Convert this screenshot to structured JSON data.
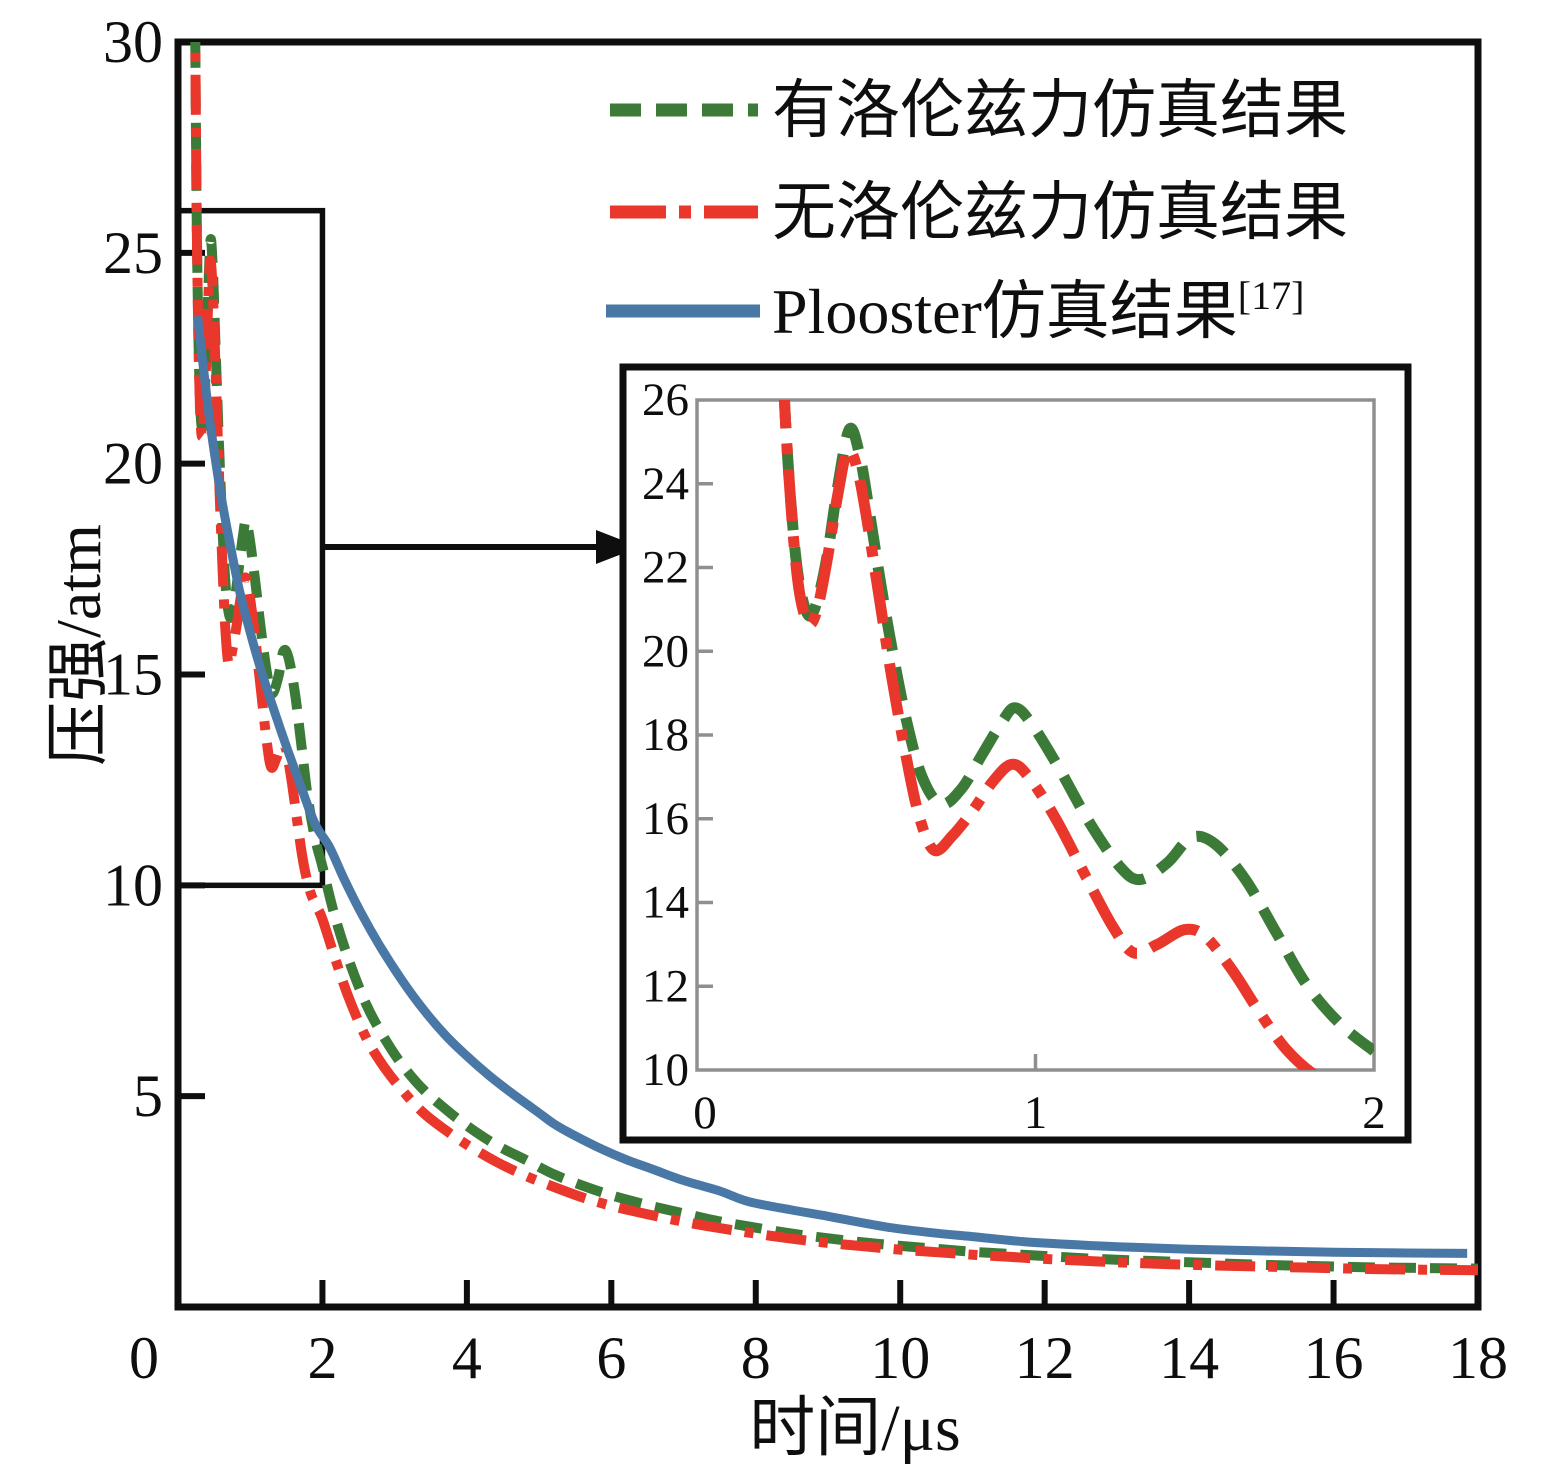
{
  "chart_data": {
    "type": "line",
    "title": "",
    "xlabel": "时间/μs",
    "ylabel": "压强/atm",
    "xlim": [
      0,
      18
    ],
    "ylim": [
      0,
      30
    ],
    "xticks": [
      0,
      2,
      4,
      6,
      8,
      10,
      12,
      14,
      16,
      18
    ],
    "yticks": [
      5,
      10,
      15,
      20,
      25,
      30
    ],
    "grid": false,
    "legend_position": "upper center",
    "colors": {
      "axis": "#0e0e0e",
      "inset_frame": "#8f8f8f"
    },
    "series": [
      {
        "id": "lorentz",
        "name": "有洛伦兹力仿真结果",
        "color": "#3c7a38",
        "line_style": "dashed",
        "points": [
          [
            0.235,
            31
          ],
          [
            0.25,
            27.5
          ],
          [
            0.265,
            25
          ],
          [
            0.285,
            22.8
          ],
          [
            0.305,
            21.5
          ],
          [
            0.33,
            20.85
          ],
          [
            0.355,
            21.2
          ],
          [
            0.385,
            22.3
          ],
          [
            0.415,
            23.9
          ],
          [
            0.45,
            25.3
          ],
          [
            0.48,
            24.7
          ],
          [
            0.51,
            23.3
          ],
          [
            0.545,
            21.5
          ],
          [
            0.58,
            19.9
          ],
          [
            0.62,
            18.3
          ],
          [
            0.665,
            17.0
          ],
          [
            0.72,
            16.35
          ],
          [
            0.78,
            16.7
          ],
          [
            0.84,
            17.5
          ],
          [
            0.9,
            18.3
          ],
          [
            0.94,
            18.65
          ],
          [
            0.99,
            18.25
          ],
          [
            1.07,
            17.2
          ],
          [
            1.16,
            15.9
          ],
          [
            1.25,
            14.85
          ],
          [
            1.31,
            14.55
          ],
          [
            1.39,
            14.95
          ],
          [
            1.46,
            15.55
          ],
          [
            1.53,
            15.4
          ],
          [
            1.62,
            14.55
          ],
          [
            1.71,
            13.3
          ],
          [
            1.8,
            12.05
          ],
          [
            1.9,
            11.1
          ],
          [
            2.0,
            10.45
          ],
          [
            2.15,
            9.4
          ],
          [
            2.35,
            8.3
          ],
          [
            2.6,
            7.2
          ],
          [
            2.85,
            6.4
          ],
          [
            3.1,
            5.75
          ],
          [
            3.4,
            5.15
          ],
          [
            3.7,
            4.7
          ],
          [
            4.0,
            4.3
          ],
          [
            4.4,
            3.85
          ],
          [
            4.8,
            3.5
          ],
          [
            5.2,
            3.15
          ],
          [
            5.6,
            2.88
          ],
          [
            6.0,
            2.65
          ],
          [
            6.5,
            2.42
          ],
          [
            7.0,
            2.22
          ],
          [
            7.5,
            2.03
          ],
          [
            8.0,
            1.88
          ],
          [
            8.5,
            1.74
          ],
          [
            9.0,
            1.63
          ],
          [
            9.5,
            1.53
          ],
          [
            10.0,
            1.45
          ],
          [
            10.5,
            1.38
          ],
          [
            11.0,
            1.31
          ],
          [
            11.5,
            1.26
          ],
          [
            12.0,
            1.21
          ],
          [
            12.5,
            1.16
          ],
          [
            13.0,
            1.12
          ],
          [
            13.5,
            1.09
          ],
          [
            14.0,
            1.06
          ],
          [
            14.5,
            1.03
          ],
          [
            15.0,
            1.0
          ],
          [
            15.5,
            0.98
          ],
          [
            16.0,
            0.96
          ],
          [
            16.5,
            0.94
          ],
          [
            17.0,
            0.93
          ],
          [
            17.5,
            0.92
          ],
          [
            18.0,
            0.91
          ]
        ]
      },
      {
        "id": "no_lorentz",
        "name": "无洛伦兹力仿真结果",
        "color": "#ea372b",
        "line_style": "dashdot",
        "points": [
          [
            0.235,
            31
          ],
          [
            0.25,
            27.5
          ],
          [
            0.265,
            25
          ],
          [
            0.285,
            22.7
          ],
          [
            0.305,
            21.3
          ],
          [
            0.33,
            20.65
          ],
          [
            0.355,
            21.0
          ],
          [
            0.385,
            22.2
          ],
          [
            0.415,
            23.7
          ],
          [
            0.445,
            24.8
          ],
          [
            0.475,
            24.3
          ],
          [
            0.505,
            23.0
          ],
          [
            0.54,
            21.2
          ],
          [
            0.575,
            19.4
          ],
          [
            0.615,
            17.6
          ],
          [
            0.655,
            16.1
          ],
          [
            0.7,
            15.25
          ],
          [
            0.755,
            15.6
          ],
          [
            0.815,
            16.2
          ],
          [
            0.875,
            16.9
          ],
          [
            0.93,
            17.3
          ],
          [
            0.98,
            17.0
          ],
          [
            1.06,
            16.0
          ],
          [
            1.15,
            14.6
          ],
          [
            1.23,
            13.4
          ],
          [
            1.29,
            12.8
          ],
          [
            1.36,
            13.0
          ],
          [
            1.44,
            13.35
          ],
          [
            1.5,
            13.2
          ],
          [
            1.58,
            12.4
          ],
          [
            1.66,
            11.4
          ],
          [
            1.74,
            10.5
          ],
          [
            1.83,
            9.85
          ],
          [
            1.92,
            9.5
          ],
          [
            2.0,
            9.2
          ],
          [
            2.15,
            8.4
          ],
          [
            2.35,
            7.4
          ],
          [
            2.6,
            6.4
          ],
          [
            2.85,
            5.7
          ],
          [
            3.1,
            5.15
          ],
          [
            3.4,
            4.6
          ],
          [
            3.7,
            4.2
          ],
          [
            4.0,
            3.85
          ],
          [
            4.4,
            3.45
          ],
          [
            4.8,
            3.12
          ],
          [
            5.2,
            2.85
          ],
          [
            5.6,
            2.6
          ],
          [
            6.0,
            2.4
          ],
          [
            6.5,
            2.2
          ],
          [
            7.0,
            2.02
          ],
          [
            7.5,
            1.87
          ],
          [
            8.0,
            1.74
          ],
          [
            8.5,
            1.62
          ],
          [
            9.0,
            1.52
          ],
          [
            9.5,
            1.44
          ],
          [
            10.0,
            1.36
          ],
          [
            10.5,
            1.3
          ],
          [
            11.0,
            1.24
          ],
          [
            11.5,
            1.19
          ],
          [
            12.0,
            1.14
          ],
          [
            12.5,
            1.1
          ],
          [
            13.0,
            1.06
          ],
          [
            13.5,
            1.03
          ],
          [
            14.0,
            1.0
          ],
          [
            14.5,
            0.98
          ],
          [
            15.0,
            0.96
          ],
          [
            15.5,
            0.94
          ],
          [
            16.0,
            0.92
          ],
          [
            16.5,
            0.9
          ],
          [
            17.0,
            0.89
          ],
          [
            17.5,
            0.88
          ],
          [
            18.0,
            0.87
          ]
        ]
      },
      {
        "id": "plooster",
        "name": "Plooster仿真结果",
        "name_superscript": "[17]",
        "color": "#4a78a6",
        "line_style": "solid",
        "points": [
          [
            0.27,
            23.5
          ],
          [
            0.35,
            22.3
          ],
          [
            0.42,
            21.3
          ],
          [
            0.5,
            20.3
          ],
          [
            0.6,
            19.2
          ],
          [
            0.72,
            18.1
          ],
          [
            0.85,
            17.0
          ],
          [
            1.0,
            16.0
          ],
          [
            1.15,
            15.1
          ],
          [
            1.3,
            14.3
          ],
          [
            1.5,
            13.3
          ],
          [
            1.7,
            12.35
          ],
          [
            1.9,
            11.45
          ],
          [
            2.1,
            10.9
          ],
          [
            2.3,
            10.15
          ],
          [
            2.55,
            9.3
          ],
          [
            2.8,
            8.55
          ],
          [
            3.1,
            7.75
          ],
          [
            3.4,
            7.05
          ],
          [
            3.7,
            6.45
          ],
          [
            4.0,
            5.95
          ],
          [
            4.3,
            5.5
          ],
          [
            4.6,
            5.1
          ],
          [
            5.0,
            4.6
          ],
          [
            5.2,
            4.35
          ],
          [
            5.4,
            4.15
          ],
          [
            5.8,
            3.8
          ],
          [
            6.2,
            3.5
          ],
          [
            6.6,
            3.25
          ],
          [
            7.0,
            3.0
          ],
          [
            7.5,
            2.75
          ],
          [
            7.9,
            2.5
          ],
          [
            8.5,
            2.3
          ],
          [
            9.0,
            2.15
          ],
          [
            9.8,
            1.9
          ],
          [
            10.5,
            1.75
          ],
          [
            11.0,
            1.67
          ],
          [
            11.7,
            1.55
          ],
          [
            12.5,
            1.47
          ],
          [
            13.0,
            1.43
          ],
          [
            14.0,
            1.37
          ],
          [
            15.0,
            1.33
          ],
          [
            16.0,
            1.3
          ],
          [
            17.0,
            1.28
          ],
          [
            17.85,
            1.27
          ]
        ]
      }
    ],
    "inset": {
      "xlim": [
        0,
        2
      ],
      "ylim": [
        10,
        26
      ],
      "xticks": [
        0,
        1,
        2
      ],
      "yticks": [
        10,
        12,
        14,
        16,
        18,
        20,
        22,
        24,
        26
      ],
      "series_ids": [
        "lorentz",
        "no_lorentz"
      ]
    },
    "zoom_region": {
      "x": [
        0,
        2
      ],
      "y": [
        10,
        26
      ]
    }
  }
}
